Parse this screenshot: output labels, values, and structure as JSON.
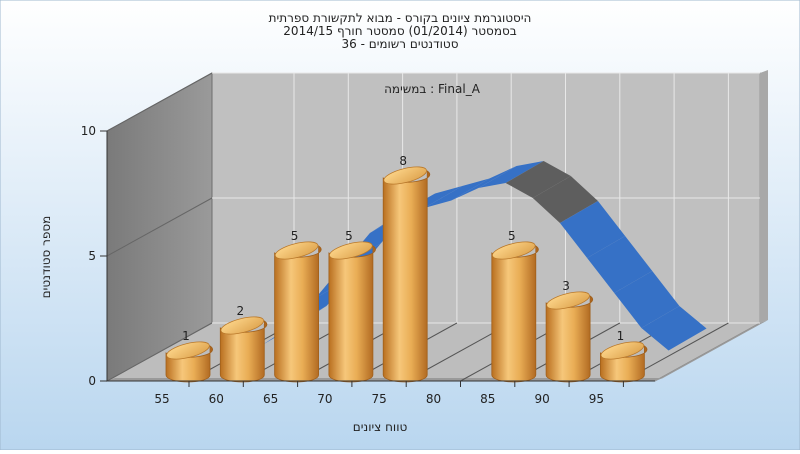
{
  "chart_data": {
    "type": "bar",
    "title_lines": [
      "היסטוגרמת ציונים בקורס - מבוא לתקשורת ספרתית",
      "בסמסטר  (01/2014)  סמסטר חורף 2014/15",
      "סטודנטים רשומים - 36"
    ],
    "subtitle": "במשימה : Final_A",
    "xlabel": "טווח ציונים",
    "ylabel": "מספר סטודנטים",
    "x_ticks": [
      "55",
      "60",
      "65",
      "70",
      "75",
      "80",
      "85",
      "90",
      "95"
    ],
    "y_ticks": [
      "0",
      "5",
      "10"
    ],
    "ylim": [
      0,
      10
    ],
    "categories": [
      "55",
      "60",
      "65",
      "70",
      "75",
      "80",
      "85",
      "90",
      "95"
    ],
    "values": [
      1,
      2,
      5,
      5,
      8,
      null,
      5,
      3,
      1
    ],
    "data_labels": [
      "1",
      "2",
      "5",
      "5",
      "8",
      "",
      "5",
      "3",
      "1"
    ],
    "trend_line": {
      "x": [
        60,
        62.5,
        65,
        67.5,
        70,
        72.5,
        75,
        77.5,
        80,
        82.5,
        85,
        87.5,
        90,
        92.5,
        95,
        97.5
      ],
      "y": [
        1.1,
        1.8,
        3.0,
        4.3,
        5.6,
        6.3,
        6.6,
        6.9,
        7.4,
        7.6,
        7.0,
        6.0,
        4.6,
        3.2,
        1.8,
        0.9
      ]
    },
    "grid": true,
    "legend": "none",
    "colors": {
      "bar_light": "#f6c77a",
      "bar_mid": "#e0993a",
      "bar_dark": "#b0661a",
      "trend_front": "#3671c6",
      "trend_back": "#5e5e5e",
      "back_wall": "#c0c0c0",
      "left_wall": "#8a8a8a",
      "floor": "#bdbdbd",
      "background_top": "#ffffff",
      "background_bottom": "#b9d6ef"
    }
  }
}
